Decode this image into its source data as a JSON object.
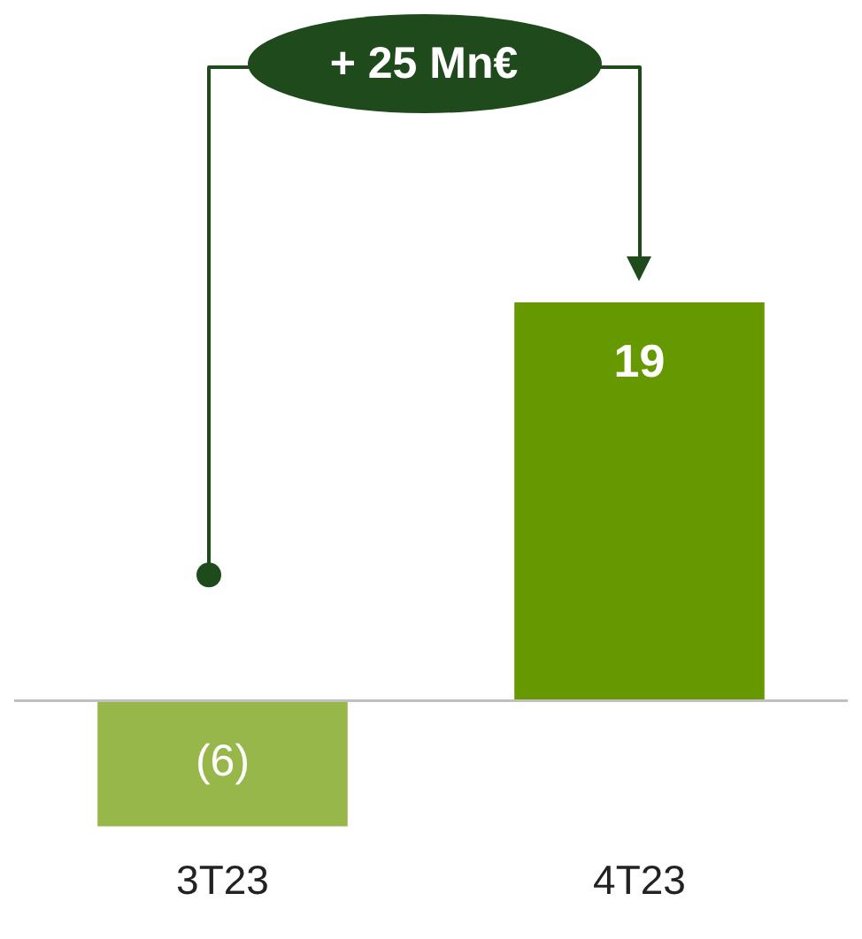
{
  "chart_data": {
    "type": "bar",
    "categories": [
      "3T23",
      "4T23"
    ],
    "values": [
      -6,
      19
    ],
    "colors": [
      "#97b74b",
      "#669900"
    ],
    "value_labels": [
      "(6)",
      "19"
    ],
    "annotations": [
      "+ 25 Mn€"
    ]
  }
}
